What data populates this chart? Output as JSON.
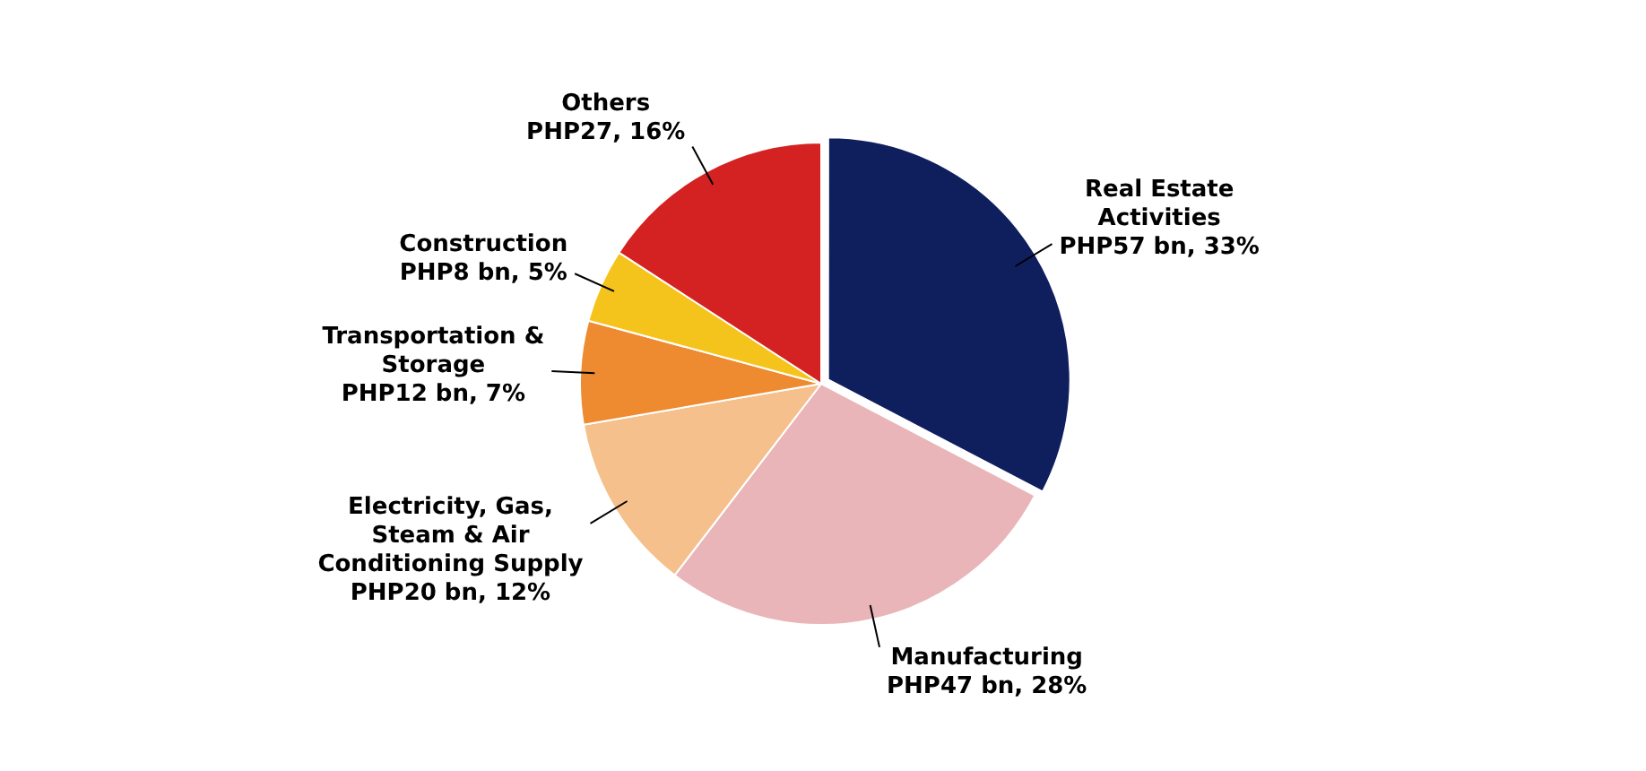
{
  "chart_data": {
    "type": "pie",
    "categories": [
      "Real Estate Activities",
      "Manufacturing",
      "Electricity, Gas, Steam & Air Conditioning Supply",
      "Transportation & Storage",
      "Construction",
      "Others"
    ],
    "values": [
      33,
      28,
      12,
      7,
      5,
      16
    ],
    "value_labels": [
      "PHP57 bn, 33%",
      "PHP47 bn, 28%",
      "PHP20 bn, 12%",
      "PHP12 bn, 7%",
      "PHP8 bn, 5%",
      "PHP27, 16%"
    ],
    "colors": [
      "#0f1f5e",
      "#e9b5b8",
      "#f5c08c",
      "#ee8a30",
      "#f5c41c",
      "#d42222"
    ],
    "legend": false
  }
}
